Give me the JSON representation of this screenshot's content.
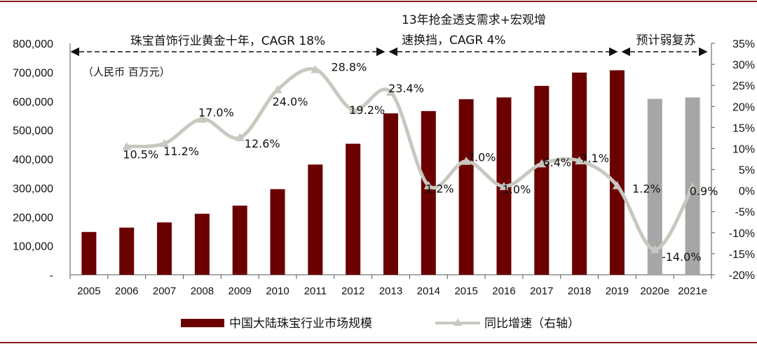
{
  "chart_data": {
    "type": "bar",
    "categories": [
      "2005",
      "2006",
      "2007",
      "2008",
      "2009",
      "2010",
      "2011",
      "2012",
      "2013",
      "2014",
      "2015",
      "2016",
      "2017",
      "2018",
      "2019",
      "2020e",
      "2021e"
    ],
    "series": [
      {
        "name": "中国大陆珠宝行业市场规模",
        "axis": "left",
        "type": "bar",
        "values": [
          148000,
          163000,
          181000,
          211000,
          239000,
          296000,
          381000,
          453000,
          558000,
          566000,
          607000,
          613000,
          653000,
          699000,
          707000,
          608000,
          613000
        ],
        "colors": {
          "actual": "#6b0000",
          "forecast": "#a6a6a6"
        }
      },
      {
        "name": "同比增速（右轴）",
        "axis": "right",
        "type": "line",
        "values": [
          null,
          10.5,
          11.2,
          17.0,
          12.6,
          24.0,
          28.8,
          19.2,
          23.4,
          1.2,
          7.0,
          1.0,
          6.4,
          7.1,
          1.2,
          -14.0,
          0.9
        ],
        "labels": [
          null,
          "10.5%",
          "11.2%",
          "17.0%",
          "12.6%",
          "24.0%",
          "28.8%",
          "19.2%",
          "23.4%",
          "1.2%",
          "7.0%",
          "1.0%",
          "6.4%",
          "7.1%",
          "1.2%",
          "-14.0%",
          "0.9%"
        ],
        "color": "#c8c8c0"
      }
    ],
    "forecast_from": "2020e",
    "ylim_left": [
      0,
      800000
    ],
    "yticks_left": [
      "-",
      "100,000",
      "200,000",
      "300,000",
      "400,000",
      "500,000",
      "600,000",
      "700,000",
      "800,000"
    ],
    "ylim_right": [
      -20,
      35
    ],
    "yticks_right": [
      "-20%",
      "-15%",
      "-10%",
      "-5%",
      "0%",
      "5%",
      "10%",
      "15%",
      "20%",
      "25%",
      "30%",
      "35%"
    ],
    "unit_label": "（人民币 百万元）",
    "annotations": [
      {
        "text": "珠宝首饰行业黄金十年，CAGR 18%",
        "from": "2005",
        "to": "2013"
      },
      {
        "text_line1": "13年抢金透支需求+宏观增",
        "text_line2": "速换挡，CAGR 4%",
        "from": "2013",
        "to": "2019"
      },
      {
        "text": "预计弱复苏",
        "from": "2019",
        "to": "2021e"
      }
    ],
    "legend": {
      "placement": "bottom-center",
      "bar_label": "中国大陆珠宝行业市场规模",
      "line_label": "同比增速（右轴）"
    },
    "frame_color": "#8b1a1a"
  }
}
